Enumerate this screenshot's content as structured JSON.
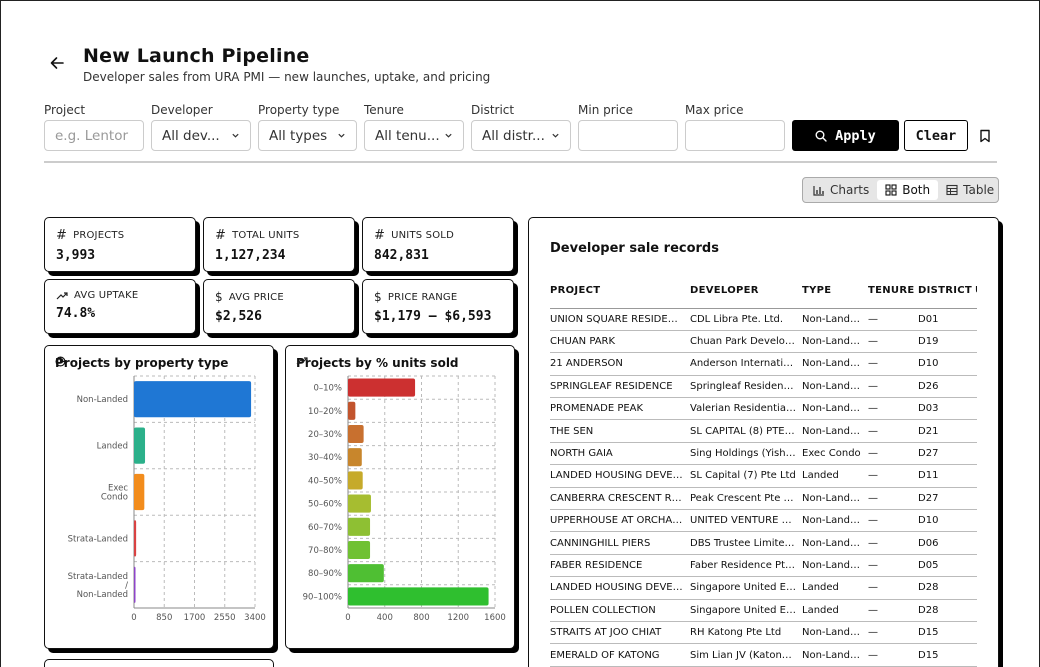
{
  "header": {
    "title": "New Launch Pipeline",
    "subtitle": "Developer sales from URA PMI — new launches, uptake, and pricing"
  },
  "filters": {
    "project": {
      "label": "Project",
      "placeholder": "e.g. Lentor"
    },
    "developer": {
      "label": "Developer",
      "value": "All dev..."
    },
    "property_type": {
      "label": "Property type",
      "value": "All types"
    },
    "tenure": {
      "label": "Tenure",
      "value": "All tenu..."
    },
    "district": {
      "label": "District",
      "value": "All distr..."
    },
    "min_price": {
      "label": "Min price",
      "value": ""
    },
    "max_price": {
      "label": "Max price",
      "value": ""
    },
    "apply_label": "Apply",
    "clear_label": "Clear"
  },
  "view_toggle": {
    "charts": "Charts",
    "both": "Both",
    "table": "Table",
    "selected": "Both"
  },
  "stats": [
    {
      "label": "PROJECTS",
      "value": "3,993",
      "icon": "hash-icon"
    },
    {
      "label": "TOTAL UNITS",
      "value": "1,127,234",
      "icon": "hash-icon"
    },
    {
      "label": "UNITS SOLD",
      "value": "842,831",
      "icon": "hash-icon"
    },
    {
      "label": "AVG UPTAKE",
      "value": "74.8%",
      "icon": "trend-up-icon"
    },
    {
      "label": "AVG PRICE",
      "value": "$2,526",
      "icon": "dollar-icon"
    },
    {
      "label": "PRICE RANGE",
      "value": "$1,179 – $6,593",
      "icon": "dollar-icon"
    }
  ],
  "chart_data": [
    {
      "type": "bar",
      "orientation": "horizontal",
      "title": "Projects by property type",
      "categories": [
        [
          "Non-Landed"
        ],
        [
          "Landed"
        ],
        [
          "Exec",
          "Condo"
        ],
        [
          "Strata-Landed"
        ],
        [
          "Strata-Landed",
          "/",
          "Non-Landed"
        ]
      ],
      "values": [
        3290,
        310,
        290,
        60,
        40
      ],
      "colors": [
        "#1f77d4",
        "#2bb08a",
        "#f28c1c",
        "#d94242",
        "#8e44c9"
      ],
      "xlim": [
        0,
        3400
      ],
      "xticks": [
        0,
        850,
        1700,
        2550,
        3400
      ],
      "grid": true
    },
    {
      "type": "bar",
      "orientation": "horizontal",
      "title": "Projects by % units sold",
      "categories": [
        [
          "0–10%"
        ],
        [
          "10–20%"
        ],
        [
          "20–30%"
        ],
        [
          "30–40%"
        ],
        [
          "40–50%"
        ],
        [
          "50–60%"
        ],
        [
          "60–70%"
        ],
        [
          "70–80%"
        ],
        [
          "80–90%"
        ],
        [
          "90–100%"
        ]
      ],
      "values": [
        730,
        80,
        170,
        150,
        160,
        250,
        240,
        240,
        390,
        1530
      ],
      "colors": [
        "#cc3030",
        "#c2542d",
        "#c8702f",
        "#c8862c",
        "#c6aa2a",
        "#a6bd30",
        "#8ec033",
        "#70c133",
        "#4fbf33",
        "#2fbf2f"
      ],
      "xlim": [
        0,
        1600
      ],
      "xticks": [
        0,
        400,
        800,
        1200,
        1600
      ],
      "grid": true
    }
  ],
  "table": {
    "title": "Developer sale records",
    "columns": [
      "PROJECT",
      "DEVELOPER",
      "TYPE",
      "TENURE",
      "DISTRICT",
      "U"
    ],
    "rows": [
      [
        "UNION SQUARE RESIDEN…",
        "CDL Libra Pte. Ltd.",
        "Non-Landed",
        "—",
        "D01"
      ],
      [
        "CHUAN PARK",
        "Chuan Park Develo…",
        "Non-Landed",
        "—",
        "D19"
      ],
      [
        "21 ANDERSON",
        "Anderson Internati…",
        "Non-Landed",
        "—",
        "D10"
      ],
      [
        "SPRINGLEAF RESIDENCE",
        "Springleaf Residenc…",
        "Non-Landed",
        "—",
        "D26"
      ],
      [
        "PROMENADE PEAK",
        "Valerian Residential…",
        "Non-Landed",
        "—",
        "D03"
      ],
      [
        "THE SEN",
        "SL CAPITAL (8) PTE …",
        "Non-Landed",
        "—",
        "D21"
      ],
      [
        "NORTH GAIA",
        "Sing Holdings (Yish…",
        "Exec Condo",
        "—",
        "D27"
      ],
      [
        "LANDED HOUSING DEVEL…",
        "SL Capital (7) Pte Ltd",
        "Landed",
        "—",
        "D11"
      ],
      [
        "CANBERRA CRESCENT RE…",
        "Peak Crescent Pte …",
        "Non-Landed",
        "—",
        "D27"
      ],
      [
        "UPPERHOUSE AT ORCHA…",
        "UNITED VENTURE …",
        "Non-Landed",
        "—",
        "D10"
      ],
      [
        "CANNINGHILL PIERS",
        "DBS Trustee Limite…",
        "Non-Landed",
        "—",
        "D06"
      ],
      [
        "FABER RESIDENCE",
        "Faber Residence Pt…",
        "Non-Landed",
        "—",
        "D05"
      ],
      [
        "LANDED HOUSING DEVEL…",
        "Singapore United E…",
        "Landed",
        "—",
        "D28"
      ],
      [
        "POLLEN COLLECTION",
        "Singapore United E…",
        "Landed",
        "—",
        "D28"
      ],
      [
        "STRAITS AT JOO CHIAT",
        "RH Katong Pte Ltd",
        "Non-Landed",
        "—",
        "D15"
      ],
      [
        "EMERALD OF KATONG",
        "Sim Lian JV (Katong…",
        "Non-Landed",
        "—",
        "D15"
      ]
    ]
  }
}
